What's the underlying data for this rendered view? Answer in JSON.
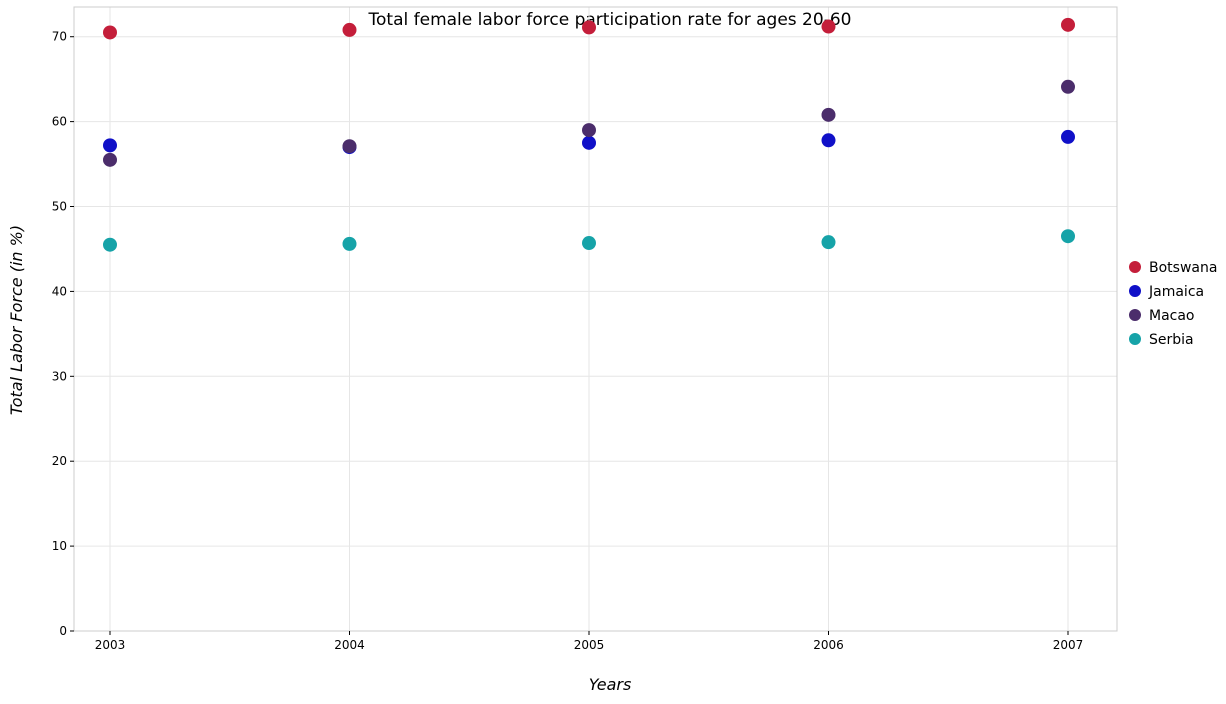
{
  "chart_data": {
    "type": "scatter",
    "title": "Total female labor force participation rate for ages 20-60",
    "xlabel": "Years",
    "ylabel": "Total Labor Force (in %)",
    "categories": [
      "2003",
      "2004",
      "2005",
      "2006",
      "2007"
    ],
    "ylim": [
      0,
      73.5
    ],
    "yticks": [
      0,
      10,
      20,
      30,
      40,
      50,
      60,
      70
    ],
    "grid": true,
    "legend_position": "right",
    "series": [
      {
        "name": "Botswana",
        "color": "#c41e3a",
        "values": [
          70.5,
          70.8,
          71.1,
          71.2,
          71.4
        ]
      },
      {
        "name": "Jamaica",
        "color": "#1010c8",
        "values": [
          57.2,
          57.0,
          57.5,
          57.8,
          58.2
        ]
      },
      {
        "name": "Macao",
        "color": "#4b2d6b",
        "values": [
          55.5,
          57.1,
          59.0,
          60.8,
          64.1
        ]
      },
      {
        "name": "Serbia",
        "color": "#16a3a8",
        "values": [
          45.5,
          45.6,
          45.7,
          45.8,
          46.5
        ]
      }
    ]
  }
}
